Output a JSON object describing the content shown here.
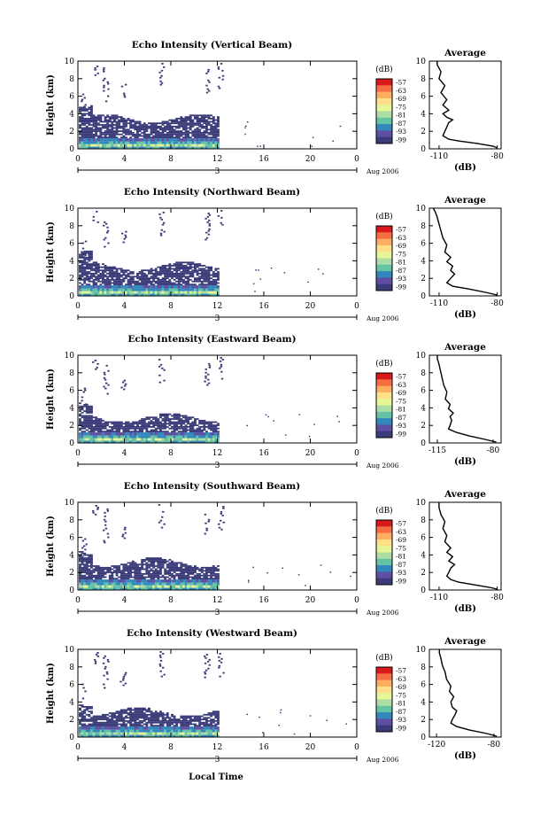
{
  "figure": {
    "xlabel": "Local Time",
    "date_label": "Aug 2006",
    "day_label": "3",
    "x_ticks": [
      "0",
      "4",
      "8",
      "12",
      "16",
      "20",
      "0"
    ],
    "y_ticks": [
      "0",
      "2",
      "4",
      "6",
      "8",
      "10"
    ],
    "ylabel": "Height (km)",
    "colorbar_unit": "(dB)",
    "colorbar_ticks": [
      "-57",
      "-63",
      "-69",
      "-75",
      "-81",
      "-87",
      "-93",
      "-99"
    ],
    "colorbar_colors": [
      "#d7191c",
      "#f46d43",
      "#fdae61",
      "#fee08b",
      "#e6f598",
      "#abdda4",
      "#66c2a5",
      "#3288bd",
      "#5e4fa2",
      "#3b3b7a"
    ],
    "profile_title": "Average",
    "profile_xlabel": "(dB)",
    "echo_color": "#3a3a78"
  },
  "chart_data": [
    {
      "type": "heatmap",
      "title": "Echo Intensity (Vertical Beam)",
      "x_unit": "hours local time",
      "xlim": [
        0,
        24
      ],
      "ylim": [
        0,
        10
      ],
      "data_until_hour": 12,
      "profile": {
        "type": "line",
        "title": "Average",
        "xlim": [
          -115,
          -78
        ],
        "x_ticks": [
          "-110",
          "-80"
        ],
        "y_ticks": [
          "0",
          "2",
          "4",
          "6",
          "8",
          "10"
        ],
        "points": [
          [
            -80,
            0.1
          ],
          [
            -82,
            0.3
          ],
          [
            -90,
            0.6
          ],
          [
            -100,
            0.9
          ],
          [
            -105,
            1.1
          ],
          [
            -108,
            1.5
          ],
          [
            -107,
            2.0
          ],
          [
            -106,
            2.5
          ],
          [
            -105,
            3.0
          ],
          [
            -103,
            3.3
          ],
          [
            -106,
            3.6
          ],
          [
            -108,
            4.0
          ],
          [
            -105,
            4.4
          ],
          [
            -108,
            5.0
          ],
          [
            -106,
            5.6
          ],
          [
            -109,
            6.4
          ],
          [
            -107,
            7.2
          ],
          [
            -110,
            8.0
          ],
          [
            -109,
            8.8
          ],
          [
            -111,
            9.6
          ],
          [
            -111,
            10
          ]
        ]
      }
    },
    {
      "type": "heatmap",
      "title": "Echo Intensity (Northward Beam)",
      "x_unit": "hours local time",
      "xlim": [
        0,
        24
      ],
      "ylim": [
        0,
        10
      ],
      "data_until_hour": 12,
      "profile": {
        "type": "line",
        "title": "Average",
        "xlim": [
          -115,
          -78
        ],
        "x_ticks": [
          "-110",
          "-80"
        ],
        "y_ticks": [
          "0",
          "2",
          "4",
          "6",
          "8",
          "10"
        ],
        "points": [
          [
            -80,
            0.1
          ],
          [
            -86,
            0.4
          ],
          [
            -95,
            0.8
          ],
          [
            -103,
            1.1
          ],
          [
            -106,
            1.5
          ],
          [
            -104,
            2.0
          ],
          [
            -102,
            2.5
          ],
          [
            -104,
            2.9
          ],
          [
            -103,
            3.4
          ],
          [
            -106,
            3.9
          ],
          [
            -104,
            4.4
          ],
          [
            -107,
            5.0
          ],
          [
            -106,
            5.8
          ],
          [
            -108,
            6.6
          ],
          [
            -109,
            7.4
          ],
          [
            -110,
            8.2
          ],
          [
            -111,
            9.0
          ],
          [
            -112,
            9.6
          ],
          [
            -113,
            10
          ]
        ]
      }
    },
    {
      "type": "heatmap",
      "title": "Echo Intensity (Eastward Beam)",
      "x_unit": "hours local time",
      "xlim": [
        0,
        24
      ],
      "ylim": [
        0,
        10
      ],
      "data_until_hour": 12,
      "profile": {
        "type": "line",
        "title": "Average",
        "xlim": [
          -120,
          -75
        ],
        "x_ticks": [
          "-115",
          "-80"
        ],
        "y_ticks": [
          "0",
          "2",
          "4",
          "6",
          "8",
          "10"
        ],
        "points": [
          [
            -78,
            0.1
          ],
          [
            -85,
            0.4
          ],
          [
            -95,
            0.8
          ],
          [
            -103,
            1.2
          ],
          [
            -108,
            1.6
          ],
          [
            -107,
            2.0
          ],
          [
            -106,
            2.6
          ],
          [
            -107,
            3.0
          ],
          [
            -105,
            3.4
          ],
          [
            -108,
            3.9
          ],
          [
            -107,
            4.4
          ],
          [
            -110,
            5.0
          ],
          [
            -109,
            5.8
          ],
          [
            -111,
            6.6
          ],
          [
            -112,
            7.4
          ],
          [
            -113,
            8.2
          ],
          [
            -114,
            9.0
          ],
          [
            -115,
            9.6
          ],
          [
            -115,
            10
          ]
        ]
      }
    },
    {
      "type": "heatmap",
      "title": "Echo Intensity (Southward Beam)",
      "x_unit": "hours local time",
      "xlim": [
        0,
        24
      ],
      "ylim": [
        0,
        10
      ],
      "data_until_hour": 12,
      "profile": {
        "type": "line",
        "title": "Average",
        "xlim": [
          -115,
          -78
        ],
        "x_ticks": [
          "-110",
          "-80"
        ],
        "y_ticks": [
          "0",
          "2",
          "4",
          "6",
          "8",
          "10"
        ],
        "points": [
          [
            -80,
            0.1
          ],
          [
            -84,
            0.3
          ],
          [
            -92,
            0.6
          ],
          [
            -100,
            0.9
          ],
          [
            -104,
            1.2
          ],
          [
            -106,
            1.6
          ],
          [
            -105,
            2.0
          ],
          [
            -104,
            2.5
          ],
          [
            -102,
            2.9
          ],
          [
            -105,
            3.3
          ],
          [
            -103,
            3.8
          ],
          [
            -106,
            4.3
          ],
          [
            -104,
            4.8
          ],
          [
            -107,
            5.5
          ],
          [
            -106,
            6.2
          ],
          [
            -108,
            7.0
          ],
          [
            -107,
            7.8
          ],
          [
            -109,
            8.6
          ],
          [
            -110,
            9.4
          ],
          [
            -110,
            10
          ]
        ]
      }
    },
    {
      "type": "heatmap",
      "title": "Echo Intensity (Westward Beam)",
      "x_unit": "hours local time",
      "xlim": [
        0,
        24
      ],
      "ylim": [
        0,
        10
      ],
      "data_until_hour": 12,
      "profile": {
        "type": "line",
        "title": "Average",
        "xlim": [
          -125,
          -75
        ],
        "x_ticks": [
          "-120",
          "-80"
        ],
        "y_ticks": [
          "0",
          "2",
          "4",
          "6",
          "8",
          "10"
        ],
        "points": [
          [
            -78,
            0.1
          ],
          [
            -85,
            0.4
          ],
          [
            -97,
            0.8
          ],
          [
            -106,
            1.2
          ],
          [
            -110,
            1.6
          ],
          [
            -109,
            2.0
          ],
          [
            -107,
            2.6
          ],
          [
            -106,
            3.0
          ],
          [
            -109,
            3.4
          ],
          [
            -110,
            4.0
          ],
          [
            -108,
            4.6
          ],
          [
            -111,
            5.2
          ],
          [
            -110,
            5.8
          ],
          [
            -113,
            6.6
          ],
          [
            -114,
            7.4
          ],
          [
            -116,
            8.2
          ],
          [
            -117,
            9.0
          ],
          [
            -118,
            9.6
          ],
          [
            -118,
            10
          ]
        ]
      }
    }
  ]
}
